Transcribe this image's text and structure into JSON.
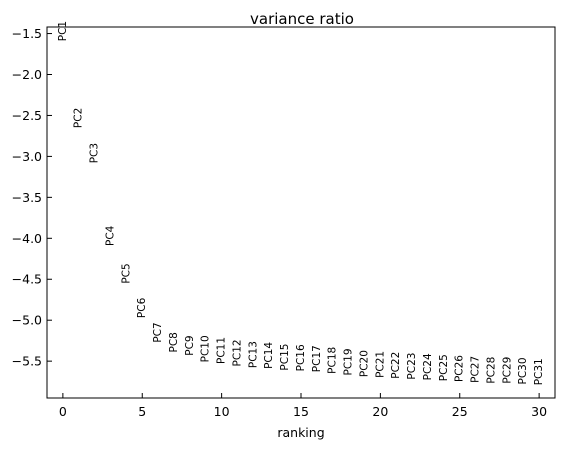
{
  "chart_data": {
    "type": "scatter",
    "title": "variance ratio",
    "xlabel": "ranking",
    "ylabel": "",
    "xlim": [
      -1,
      31
    ],
    "ylim": [
      -5.95,
      -1.42
    ],
    "x_ticks": [
      0,
      5,
      10,
      15,
      20,
      25,
      30
    ],
    "y_ticks": [
      -1.5,
      -2.0,
      -2.5,
      -3.0,
      -3.5,
      -4.0,
      -4.5,
      -5.0,
      -5.5
    ],
    "y_tick_labels": [
      "−1.5",
      "−2.0",
      "−2.5",
      "−3.0",
      "−3.5",
      "−4.0",
      "−4.5",
      "−5.0",
      "−5.5"
    ],
    "grid": false,
    "points": [
      {
        "x": 0,
        "y": -1.47,
        "label": "PC1"
      },
      {
        "x": 1,
        "y": -2.53,
        "label": "PC2"
      },
      {
        "x": 2,
        "y": -2.96,
        "label": "PC3"
      },
      {
        "x": 3,
        "y": -3.97,
        "label": "PC4"
      },
      {
        "x": 4,
        "y": -4.43,
        "label": "PC5"
      },
      {
        "x": 5,
        "y": -4.85,
        "label": "PC6"
      },
      {
        "x": 6,
        "y": -5.15,
        "label": "PC7"
      },
      {
        "x": 7,
        "y": -5.27,
        "label": "PC8"
      },
      {
        "x": 8,
        "y": -5.31,
        "label": "PC9"
      },
      {
        "x": 9,
        "y": -5.35,
        "label": "PC10"
      },
      {
        "x": 10,
        "y": -5.37,
        "label": "PC11"
      },
      {
        "x": 11,
        "y": -5.4,
        "label": "PC12"
      },
      {
        "x": 12,
        "y": -5.42,
        "label": "PC13"
      },
      {
        "x": 13,
        "y": -5.43,
        "label": "PC14"
      },
      {
        "x": 14,
        "y": -5.45,
        "label": "PC15"
      },
      {
        "x": 15,
        "y": -5.46,
        "label": "PC16"
      },
      {
        "x": 16,
        "y": -5.47,
        "label": "PC17"
      },
      {
        "x": 17,
        "y": -5.49,
        "label": "PC18"
      },
      {
        "x": 18,
        "y": -5.51,
        "label": "PC19"
      },
      {
        "x": 19,
        "y": -5.53,
        "label": "PC20"
      },
      {
        "x": 20,
        "y": -5.54,
        "label": "PC21"
      },
      {
        "x": 21,
        "y": -5.55,
        "label": "PC22"
      },
      {
        "x": 22,
        "y": -5.56,
        "label": "PC23"
      },
      {
        "x": 23,
        "y": -5.57,
        "label": "PC24"
      },
      {
        "x": 24,
        "y": -5.58,
        "label": "PC25"
      },
      {
        "x": 25,
        "y": -5.59,
        "label": "PC26"
      },
      {
        "x": 26,
        "y": -5.6,
        "label": "PC27"
      },
      {
        "x": 27,
        "y": -5.61,
        "label": "PC28"
      },
      {
        "x": 28,
        "y": -5.61,
        "label": "PC29"
      },
      {
        "x": 29,
        "y": -5.62,
        "label": "PC30"
      },
      {
        "x": 30,
        "y": -5.63,
        "label": "PC31"
      }
    ]
  }
}
